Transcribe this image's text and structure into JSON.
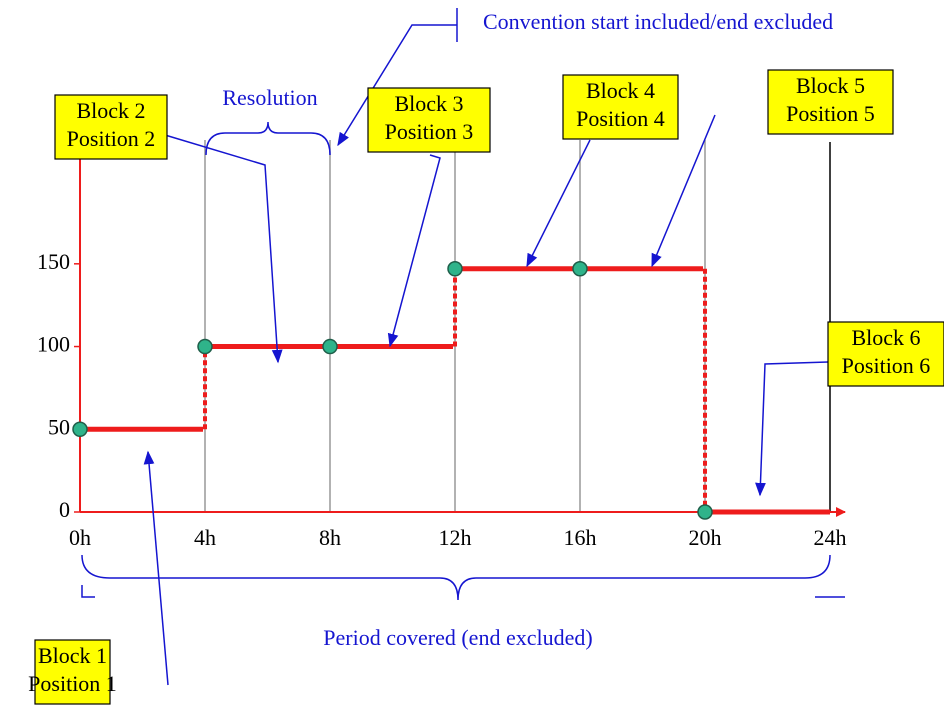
{
  "axis": {
    "ylim": [
      0,
      220
    ],
    "yticks": [
      0,
      50,
      100,
      150
    ],
    "xticks": [
      "0h",
      "4h",
      "8h",
      "12h",
      "16h",
      "20h",
      "24h"
    ]
  },
  "blocks": [
    {
      "block": "Block 1",
      "position": "Position 1",
      "value": 50
    },
    {
      "block": "Block 2",
      "position": "Position 2",
      "value": 100
    },
    {
      "block": "Block 3",
      "position": "Position 3",
      "value": 100
    },
    {
      "block": "Block 4",
      "position": "Position 4",
      "value": 147
    },
    {
      "block": "Block 5",
      "position": "Position 5",
      "value": 147
    },
    {
      "block": "Block 6",
      "position": "Position 6",
      "value": 0
    }
  ],
  "annotations": {
    "resolution": "Resolution",
    "convention": "Convention start included/end excluded",
    "period": "Period covered (end excluded)"
  }
}
